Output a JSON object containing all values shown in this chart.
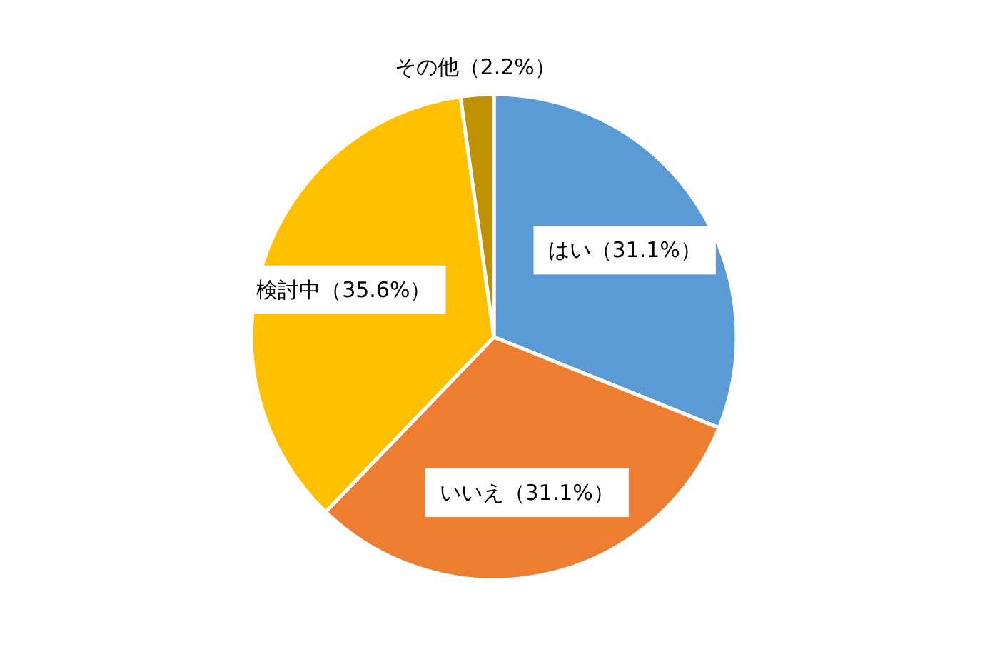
{
  "chart_data": {
    "type": "pie",
    "categories": [
      "はい（31.1%）",
      "いいえ（31.1%）",
      "検討中（35.6%）",
      "その他（2.2%）"
    ],
    "values": [
      31.1,
      31.1,
      35.6,
      2.2
    ],
    "colors": [
      "#5b9bd5",
      "#ed7d31",
      "#ffc000",
      "#bf9000"
    ]
  }
}
